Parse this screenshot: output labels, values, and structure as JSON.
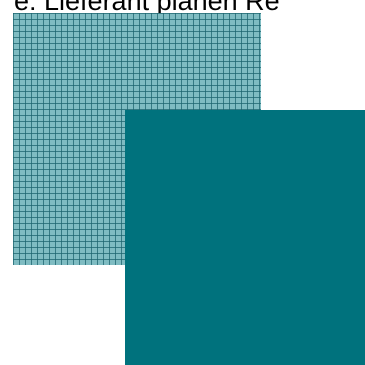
{
  "header": {
    "text": "e: Lieferant planen Re"
  },
  "swatches": {
    "grid_color": "#7fbcc2",
    "grid_line_color": "#1c646e",
    "solid_color": "#00727d"
  }
}
